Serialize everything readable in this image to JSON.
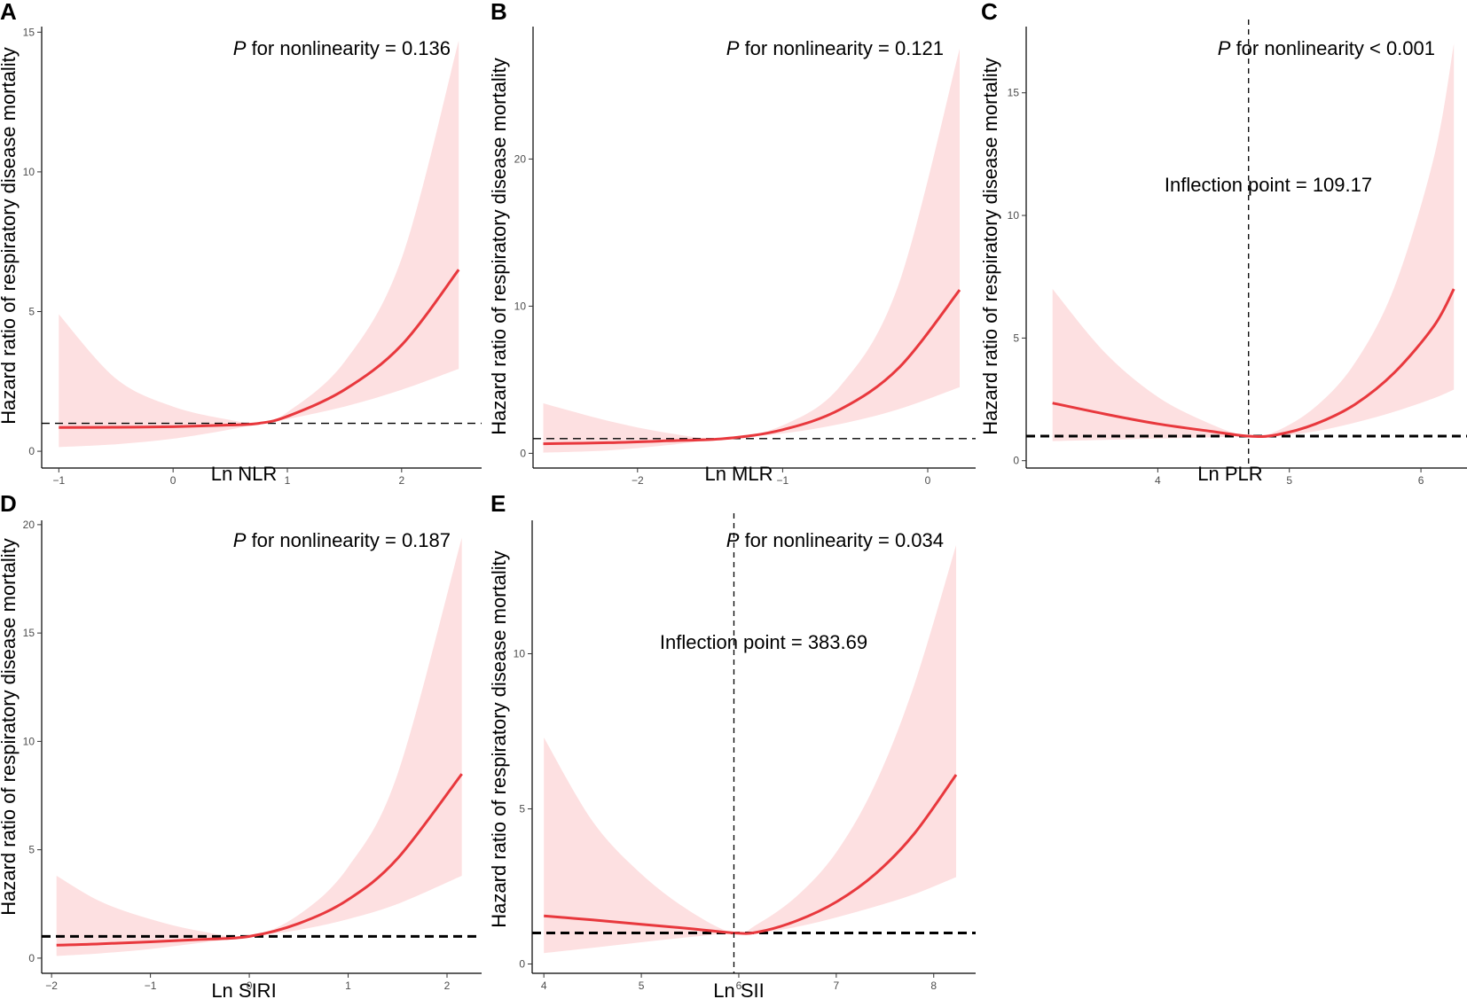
{
  "figure": {
    "y_axis_label": "Hazard ratio of respiratory disease mortality",
    "colors": {
      "curve": "#e8383d",
      "band": "#fde0e1",
      "axis": "#000000",
      "tick_text": "#4d4d4d"
    }
  },
  "chart_data": [
    {
      "panel": "A",
      "type": "line",
      "xlabel": "Ln NLR",
      "ylabel": "Hazard ratio of respiratory disease mortality",
      "annotation": {
        "italic": "P",
        "rest": " for nonlinearity = 0.136"
      },
      "xlim": [
        -1.15,
        2.7
      ],
      "ylim": [
        -0.6,
        15.2
      ],
      "x_ticks": [
        -1,
        0,
        1,
        2
      ],
      "x_tick_labels": [
        "−1",
        "0",
        "1",
        "2"
      ],
      "y_ticks": [
        0,
        5,
        10,
        15
      ],
      "y_tick_labels": [
        "0",
        "5",
        "10",
        "15"
      ],
      "reference_hline": {
        "y": 1,
        "style": "thin"
      },
      "inflection": null,
      "series": [
        {
          "name": "HR",
          "x": [
            -1,
            -0.5,
            0,
            0.5,
            0.75,
            1,
            1.5,
            2,
            2.5
          ],
          "y": [
            0.85,
            0.86,
            0.88,
            0.94,
            1.0,
            1.25,
            2.2,
            3.8,
            6.5
          ]
        },
        {
          "name": "lower",
          "x": [
            -1,
            -0.5,
            0,
            0.5,
            0.75,
            1,
            1.5,
            2,
            2.5
          ],
          "y": [
            0.15,
            0.25,
            0.45,
            0.78,
            1.0,
            1.15,
            1.6,
            2.2,
            2.95
          ]
        },
        {
          "name": "upper",
          "x": [
            -1,
            -0.5,
            0,
            0.5,
            0.75,
            1,
            1.5,
            2,
            2.5
          ],
          "y": [
            4.9,
            2.6,
            1.6,
            1.12,
            1.0,
            1.4,
            3.2,
            6.9,
            14.7
          ]
        }
      ]
    },
    {
      "panel": "B",
      "type": "line",
      "xlabel": "Ln MLR",
      "ylabel": "Hazard ratio of respiratory disease mortality",
      "annotation": {
        "italic": "P",
        "rest": " for nonlinearity = 0.121"
      },
      "xlim": [
        -2.72,
        0.33
      ],
      "ylim": [
        -1.0,
        29.0
      ],
      "x_ticks": [
        -2,
        -1,
        0
      ],
      "x_tick_labels": [
        "−2",
        "−1",
        "0"
      ],
      "y_ticks": [
        0,
        10,
        20
      ],
      "y_tick_labels": [
        "0",
        "10",
        "20"
      ],
      "reference_hline": {
        "y": 1,
        "style": "thin"
      },
      "inflection": null,
      "series": [
        {
          "name": "HR",
          "x": [
            -2.65,
            -2.2,
            -1.8,
            -1.4,
            -1.0,
            -0.6,
            -0.2,
            0.22
          ],
          "y": [
            0.65,
            0.72,
            0.85,
            1.0,
            1.6,
            3.0,
            5.8,
            11.1
          ]
        },
        {
          "name": "lower",
          "x": [
            -2.65,
            -2.2,
            -1.8,
            -1.4,
            -1.0,
            -0.6,
            -0.2,
            0.22
          ],
          "y": [
            0.05,
            0.2,
            0.55,
            1.0,
            1.35,
            2.0,
            3.0,
            4.5
          ]
        },
        {
          "name": "upper",
          "x": [
            -2.65,
            -2.2,
            -1.8,
            -1.4,
            -1.0,
            -0.6,
            -0.2,
            0.22
          ],
          "y": [
            3.4,
            2.2,
            1.4,
            1.0,
            1.9,
            4.6,
            11.5,
            27.5
          ]
        }
      ]
    },
    {
      "panel": "C",
      "type": "line",
      "xlabel": "Ln PLR",
      "ylabel": "Hazard ratio of respiratory disease mortality",
      "annotation": {
        "italic": "P",
        "rest": " for nonlinearity < 0.001"
      },
      "inflection_label": "Inflection point = 109.17",
      "xlim": [
        3.0,
        6.35
      ],
      "ylim": [
        -0.3,
        17.7
      ],
      "x_ticks": [
        4,
        5,
        6
      ],
      "x_tick_labels": [
        "4",
        "5",
        "6"
      ],
      "y_ticks": [
        0,
        5,
        10,
        15
      ],
      "y_tick_labels": [
        "0",
        "5",
        "10",
        "15"
      ],
      "reference_hline": {
        "y": 1,
        "style": "thick"
      },
      "inflection": {
        "x": 4.69
      },
      "series": [
        {
          "name": "HR",
          "x": [
            3.2,
            3.6,
            4.0,
            4.4,
            4.69,
            4.9,
            5.2,
            5.5,
            5.8,
            6.1,
            6.25
          ],
          "y": [
            2.35,
            1.9,
            1.5,
            1.2,
            1.0,
            1.05,
            1.5,
            2.3,
            3.6,
            5.5,
            7.0
          ]
        },
        {
          "name": "lower",
          "x": [
            3.2,
            3.6,
            4.0,
            4.4,
            4.69,
            4.9,
            5.2,
            5.5,
            5.8,
            6.1,
            6.25
          ],
          "y": [
            0.8,
            0.85,
            0.9,
            0.95,
            1.0,
            1.0,
            1.2,
            1.55,
            2.0,
            2.55,
            2.9
          ]
        },
        {
          "name": "upper",
          "x": [
            3.2,
            3.6,
            4.0,
            4.4,
            4.69,
            4.9,
            5.2,
            5.5,
            5.8,
            6.1,
            6.25
          ],
          "y": [
            7.0,
            4.4,
            2.6,
            1.5,
            1.0,
            1.2,
            2.2,
            4.0,
            7.1,
            12.4,
            17.0
          ]
        }
      ]
    },
    {
      "panel": "D",
      "type": "line",
      "xlabel": "Ln SIRI",
      "ylabel": "Hazard ratio of respiratory disease mortality",
      "annotation": {
        "italic": "P",
        "rest": " for nonlinearity = 0.187"
      },
      "xlim": [
        -2.1,
        2.35
      ],
      "ylim": [
        -0.7,
        20.2
      ],
      "x_ticks": [
        -2,
        -1,
        0,
        1,
        2
      ],
      "x_tick_labels": [
        "−2",
        "−1",
        "0",
        "1",
        "2"
      ],
      "y_ticks": [
        0,
        5,
        10,
        15,
        20
      ],
      "y_tick_labels": [
        "0",
        "5",
        "10",
        "15",
        "20"
      ],
      "reference_hline": {
        "y": 1,
        "style": "thick"
      },
      "inflection": null,
      "series": [
        {
          "name": "HR",
          "x": [
            -1.95,
            -1.5,
            -1.0,
            -0.5,
            0.0,
            0.5,
            1.0,
            1.5,
            2.15
          ],
          "y": [
            0.6,
            0.66,
            0.75,
            0.86,
            1.0,
            1.6,
            2.7,
            4.6,
            8.5
          ]
        },
        {
          "name": "lower",
          "x": [
            -1.95,
            -1.5,
            -1.0,
            -0.5,
            0.0,
            0.5,
            1.0,
            1.5,
            2.15
          ],
          "y": [
            0.1,
            0.22,
            0.42,
            0.7,
            1.0,
            1.3,
            1.8,
            2.5,
            3.8
          ]
        },
        {
          "name": "upper",
          "x": [
            -1.95,
            -1.5,
            -1.0,
            -0.5,
            0.0,
            0.5,
            1.0,
            1.5,
            2.15
          ],
          "y": [
            3.8,
            2.6,
            1.8,
            1.25,
            1.0,
            2.0,
            4.2,
            8.5,
            19.4
          ]
        }
      ]
    },
    {
      "panel": "E",
      "type": "line",
      "xlabel": "Ln SII",
      "ylabel": "Hazard ratio of respiratory disease mortality",
      "annotation": {
        "italic": "P",
        "rest": " for nonlinearity = 0.034"
      },
      "inflection_label": "Inflection point = 383.69",
      "xlim": [
        3.88,
        8.43
      ],
      "ylim": [
        -0.3,
        14.3
      ],
      "x_ticks": [
        4,
        5,
        6,
        7,
        8
      ],
      "x_tick_labels": [
        "4",
        "5",
        "6",
        "7",
        "8"
      ],
      "y_ticks": [
        0,
        5,
        10
      ],
      "y_tick_labels": [
        "0",
        "5",
        "10"
      ],
      "reference_hline": {
        "y": 1,
        "style": "thick"
      },
      "inflection": {
        "x": 5.95
      },
      "series": [
        {
          "name": "HR",
          "x": [
            4.0,
            4.5,
            5.0,
            5.5,
            5.95,
            6.2,
            6.6,
            7.0,
            7.4,
            7.8,
            8.23
          ],
          "y": [
            1.55,
            1.42,
            1.28,
            1.14,
            1.0,
            1.03,
            1.4,
            2.0,
            2.9,
            4.2,
            6.1
          ]
        },
        {
          "name": "lower",
          "x": [
            4.0,
            4.5,
            5.0,
            5.5,
            5.95,
            6.2,
            6.6,
            7.0,
            7.4,
            7.8,
            8.23
          ],
          "y": [
            0.35,
            0.52,
            0.7,
            0.87,
            1.0,
            1.0,
            1.2,
            1.5,
            1.85,
            2.25,
            2.8
          ]
        },
        {
          "name": "upper",
          "x": [
            4.0,
            4.5,
            5.0,
            5.5,
            5.95,
            6.2,
            6.6,
            7.0,
            7.4,
            7.8,
            8.23
          ],
          "y": [
            7.3,
            4.6,
            2.9,
            1.7,
            1.0,
            1.3,
            2.2,
            3.6,
            5.8,
            9.0,
            13.5
          ]
        }
      ]
    }
  ]
}
